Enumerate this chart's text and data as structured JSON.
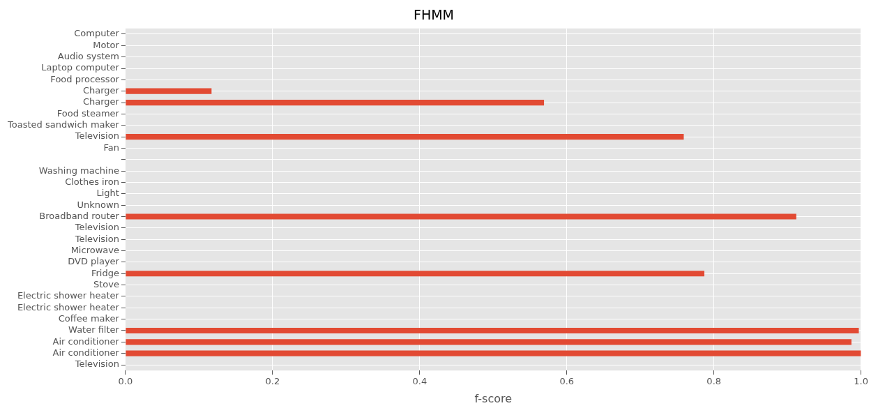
{
  "chart_data": {
    "type": "bar",
    "orientation": "horizontal",
    "title": "FHMM",
    "xlabel": "f-score",
    "categories": [
      "Computer",
      "Motor",
      "Audio system",
      "Laptop computer",
      "Food processor",
      "Charger",
      "Charger",
      "Food steamer",
      "Toasted sandwich maker",
      "Television",
      "Fan",
      null,
      "Washing machine",
      "Clothes iron",
      "Light",
      "Unknown",
      "Broadband router",
      "Television",
      "Television",
      "Microwave",
      "DVD player",
      "Fridge",
      "Stove",
      "Electric shower heater",
      "Electric shower heater",
      "Coffee maker",
      "Water filter",
      "Air conditioner",
      "Air conditioner",
      "Television"
    ],
    "values": [
      0,
      0,
      0,
      0,
      0,
      0.117,
      0.569,
      0,
      0,
      0.759,
      0,
      0,
      0,
      0,
      0,
      0,
      0.912,
      0,
      0,
      0,
      0,
      0.787,
      0,
      0,
      0,
      0,
      0.997,
      0.987,
      1.0,
      0
    ],
    "color": "#e24a33",
    "xlim": [
      0,
      1
    ],
    "xticks": [
      {
        "value": 0,
        "label": "0.0"
      },
      0.2,
      0.4,
      0.6,
      0.8,
      {
        "value": 1,
        "label": "1.0"
      }
    ],
    "grid": true
  }
}
